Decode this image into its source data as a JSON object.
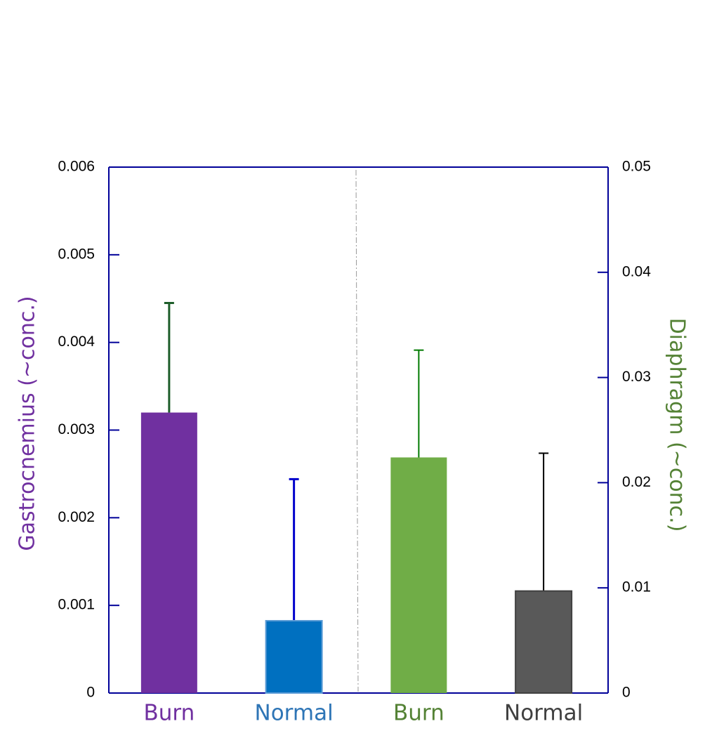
{
  "chart_data": {
    "type": "bar",
    "ylabel": "Gastrocnemius (~conc.)",
    "ylabel_color": "#7030a0",
    "y2label": "Diaphragm (~conc.)",
    "y2label_color": "#548235",
    "ylim": [
      0,
      0.006
    ],
    "yticks": [
      0,
      0.001,
      0.002,
      0.003,
      0.004,
      0.005,
      0.006
    ],
    "y2lim": [
      0,
      0.05
    ],
    "y2ticks": [
      0,
      0.01,
      0.02,
      0.03,
      0.04,
      0.05
    ],
    "axis_color": "#000099",
    "groups": [
      {
        "axis": "y",
        "categories": [
          "Burn",
          "Normal"
        ],
        "label_colors": [
          "#7030a0",
          "#2e75b6"
        ],
        "colors": [
          "#7030a0",
          "#0070c0"
        ],
        "values": [
          0.0032,
          0.000825
        ],
        "errors": [
          0.00125,
          0.001615
        ],
        "error_colors": [
          "#1e5e2a",
          "#0000cc"
        ]
      },
      {
        "axis": "y2",
        "categories": [
          "Burn",
          "Normal"
        ],
        "label_colors": [
          "#548235",
          "#404040"
        ],
        "colors": [
          "#70ad47",
          "#595959"
        ],
        "values": [
          0.0224,
          0.0097
        ],
        "errors": [
          0.0102,
          0.0131
        ],
        "error_colors": [
          "#007a00",
          "#000000"
        ]
      }
    ]
  }
}
